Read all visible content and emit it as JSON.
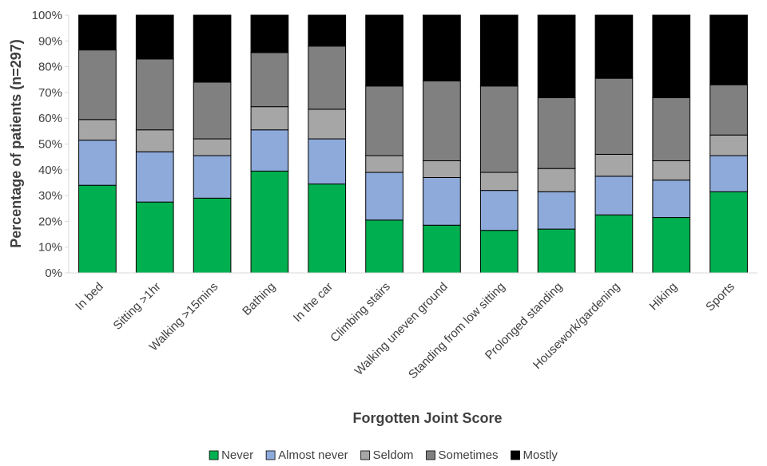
{
  "chart_data": {
    "type": "bar",
    "stacked": true,
    "title": "",
    "xlabel": "Forgotten Joint Score",
    "ylabel": "Percentage of patients (n=297)",
    "ylim": [
      0,
      100
    ],
    "y_ticks": [
      0,
      10,
      20,
      30,
      40,
      50,
      60,
      70,
      80,
      90,
      100
    ],
    "y_tick_labels": [
      "0%",
      "10%",
      "20%",
      "30%",
      "40%",
      "50%",
      "60%",
      "70%",
      "80%",
      "90%",
      "100%"
    ],
    "grid": false,
    "legend_position": "bottom",
    "categories": [
      "In bed",
      "Sitting >1hr",
      "Walking >15mins",
      "Bathing",
      "In the car",
      "Climbing stairs",
      "Walking uneven ground",
      "Standing from low sitting",
      "Prolonged standing",
      "Housework/gardening",
      "Hiking",
      "Sports"
    ],
    "series": [
      {
        "name": "Never",
        "color": "#00b050",
        "values": [
          34,
          27.5,
          29,
          39.5,
          34.5,
          20.5,
          18.5,
          16.5,
          17,
          22.5,
          21.5,
          31.5
        ]
      },
      {
        "name": "Almost never",
        "color": "#8eaadb",
        "values": [
          17.5,
          19.5,
          16.5,
          16,
          17.5,
          18.5,
          18.5,
          15.5,
          14.5,
          15,
          14.5,
          14
        ]
      },
      {
        "name": "Seldom",
        "color": "#a6a6a6",
        "values": [
          8,
          8.5,
          6.5,
          9,
          11.5,
          6.5,
          6.5,
          7,
          9,
          8.5,
          7.5,
          8
        ]
      },
      {
        "name": "Sometimes",
        "color": "#808080",
        "values": [
          27,
          27.5,
          22,
          21,
          24.5,
          27,
          31,
          33.5,
          27.5,
          29.5,
          24.5,
          19.5
        ]
      },
      {
        "name": "Mostly",
        "color": "#000000",
        "values": [
          13.5,
          17,
          26,
          14.5,
          12,
          27.5,
          25.5,
          27.5,
          32,
          24.5,
          32,
          27
        ]
      }
    ]
  }
}
